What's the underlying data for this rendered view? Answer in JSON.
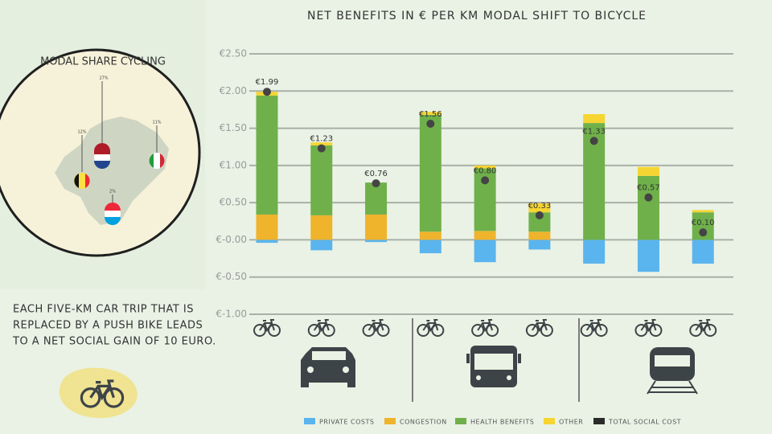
{
  "chart_data": {
    "type": "bar",
    "stacked": true,
    "title": "NET BENEFITS IN € PER KM MODAL SHIFT TO BICYCLE",
    "categories": [
      null,
      null,
      null,
      null,
      null,
      null,
      null,
      null,
      null
    ],
    "ylim": [
      -1.0,
      2.5
    ],
    "yticks": [
      {
        "value": 2.5,
        "label": "€2.50"
      },
      {
        "value": 2.0,
        "label": "€2.00"
      },
      {
        "value": 1.5,
        "label": "€1.50"
      },
      {
        "value": 1.0,
        "label": "€1.00"
      },
      {
        "value": 0.5,
        "label": "€0.50"
      },
      {
        "value": 0,
        "label": "€-0.00"
      },
      {
        "value": -0.5,
        "label": "€-0.50"
      },
      {
        "value": -1.0,
        "label": "€-1.00"
      }
    ],
    "grid": true,
    "series": [
      {
        "name": "PRIVATE COSTS",
        "color": "#5ab4ee",
        "values": [
          -0.04,
          -0.14,
          -0.03,
          -0.18,
          -0.3,
          -0.13,
          -0.32,
          -0.43,
          -0.32
        ]
      },
      {
        "name": "CONGESTION",
        "color": "#efb32c",
        "values": [
          0.34,
          0.33,
          0.34,
          0.11,
          0.12,
          0.11,
          0,
          0,
          0
        ]
      },
      {
        "name": "HEALTH BENEFITS",
        "color": "#6fb04a",
        "values": [
          1.6,
          0.94,
          0.43,
          1.57,
          0.84,
          0.26,
          1.57,
          0.86,
          0.37
        ]
      },
      {
        "name": "OTHER",
        "color": "#f6d532",
        "values": [
          0.05,
          0.04,
          0,
          0.04,
          0.04,
          0.12,
          0.12,
          0.12,
          0.03
        ]
      },
      {
        "name": "TOTAL SOCIAL COST",
        "color": "#2b2b2b",
        "type": "dot",
        "values": [
          1.99,
          1.23,
          0.76,
          1.56,
          0.8,
          0.33,
          1.33,
          0.57,
          0.1
        ],
        "value_labels": [
          "€1.99",
          "€1.23",
          "€0.76",
          "€1.56",
          "€0.80",
          "€0.33",
          "€1.33",
          "€0.57",
          "€0.10"
        ]
      }
    ]
  },
  "modal_share": {
    "title": "MODAL SHARE CYCLING",
    "labels": [
      "27%",
      "12%",
      "11%",
      "2%"
    ]
  },
  "note": [
    "EACH FIVE-KM CAR TRIP THAT IS",
    "REPLACED BY A PUSH BIKE LEADS",
    "TO A NET SOCIAL GAIN OF 10 EURO."
  ]
}
